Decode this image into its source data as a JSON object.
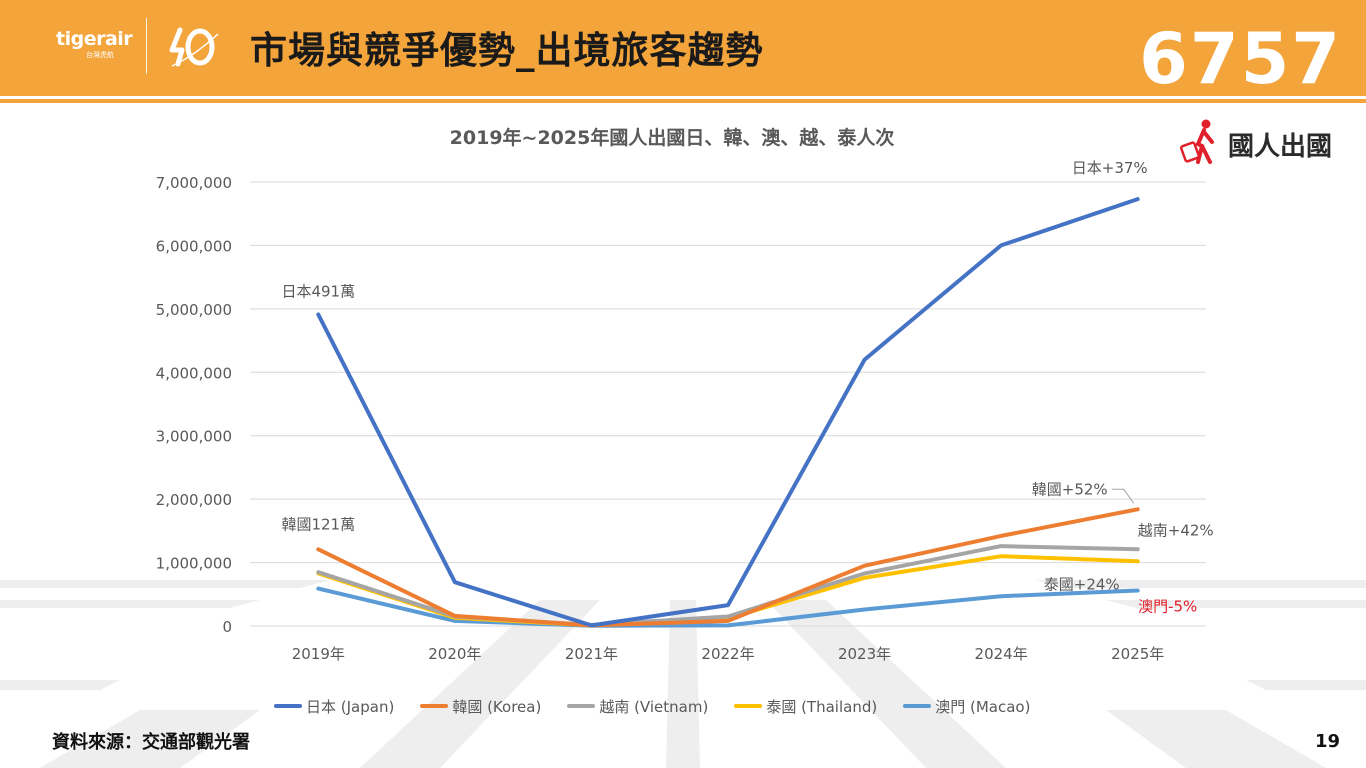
{
  "header": {
    "logo_word": "tigerair",
    "logo_sub": "台灣虎航",
    "title": "市場與競爭優勢_出境旅客趨勢",
    "stock_code": "6757"
  },
  "badge": {
    "label": "國人出國",
    "icon": "traveler-suitcase-icon"
  },
  "footer": {
    "source": "資料來源：交通部觀光署",
    "page": "19"
  },
  "colors": {
    "header": "#f3a43b",
    "japan": "#4472c4",
    "korea": "#ed7d31",
    "vietnam": "#a5a5a5",
    "thailand": "#ffc000",
    "macao": "#5b9bd5",
    "negative_label": "#e0202a"
  },
  "chart_data": {
    "type": "line",
    "title": "2019年~2025年國人出國日、韓、澳、越、泰人次",
    "categories": [
      "2019年",
      "2020年",
      "2021年",
      "2022年",
      "2023年",
      "2024年",
      "2025年"
    ],
    "ylim": [
      0,
      7000000
    ],
    "yticks": [
      "0",
      "1,000,000",
      "2,000,000",
      "3,000,000",
      "4,000,000",
      "5,000,000",
      "6,000,000",
      "7,000,000"
    ],
    "grid": true,
    "legend_position": "bottom",
    "series": [
      {
        "name": "日本 (Japan)",
        "key": "japan",
        "values": [
          4911000,
          690000,
          10000,
          330000,
          4200000,
          6000000,
          6730000
        ]
      },
      {
        "name": "韓國 (Korea)",
        "key": "korea",
        "values": [
          1210000,
          160000,
          10000,
          80000,
          950000,
          1420000,
          1840000
        ]
      },
      {
        "name": "越南 (Vietnam)",
        "key": "vietnam",
        "values": [
          850000,
          150000,
          15000,
          150000,
          830000,
          1260000,
          1210000
        ]
      },
      {
        "name": "泰國 (Thailand)",
        "key": "thailand",
        "values": [
          830000,
          130000,
          10000,
          120000,
          760000,
          1100000,
          1020000
        ]
      },
      {
        "name": "澳門 (Macao)",
        "key": "macao",
        "values": [
          590000,
          80000,
          5000,
          10000,
          260000,
          470000,
          560000
        ]
      }
    ],
    "annotations": [
      {
        "text": "日本491萬",
        "series": "japan",
        "index": 0
      },
      {
        "text": "韓國121萬",
        "series": "korea",
        "index": 0
      },
      {
        "text": "日本+37%",
        "series": "japan",
        "index": 6
      },
      {
        "text": "韓國+52%",
        "series": "korea",
        "index": 6
      },
      {
        "text": "越南+42%",
        "series": "vietnam",
        "index": 6
      },
      {
        "text": "泰國+24%",
        "series": "thailand",
        "index": 6
      },
      {
        "text": "澳門-5%",
        "series": "macao",
        "index": 6
      }
    ]
  }
}
